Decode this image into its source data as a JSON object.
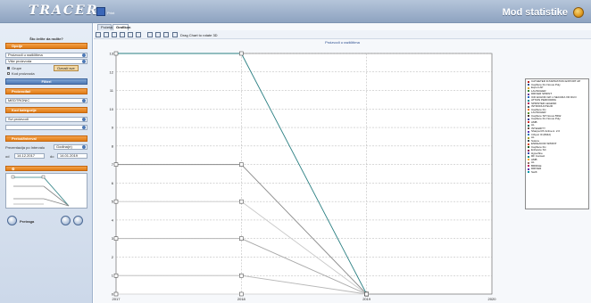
{
  "header": {
    "logo": "TRACER",
    "sub": "Print",
    "title": "Mod statistike"
  },
  "sidebar": {
    "title": "Što želite da radite?",
    "sections": {
      "opcije": "Opcije",
      "filteri": "Filteri",
      "proizvodjac": "Proizvođač",
      "kategorija": "Kod kategorije",
      "period": "Period/Interval"
    },
    "opcije": {
      "select1": "Proizvodi u različitima",
      "select2": "Više proizvoda",
      "chk_grupe": "Grupe",
      "btn": "Označi sve",
      "chk_kod": "Kod proizvoda"
    },
    "filteri": {
      "proizvodjac_value": "MEDTRONIC",
      "kategorija_value": "Svi proizvodi"
    },
    "period": {
      "label": "Prezentacija po Intervalu",
      "interval_value": "Godina(e)",
      "od_label": "od",
      "od_value": "14.12.2017",
      "do_label": "do",
      "do_value": "14.01.2019"
    },
    "footer": {
      "pretraga": "Pretraga"
    }
  },
  "main": {
    "tabs": [
      "Početak",
      "Grafikon"
    ],
    "toolbar_hint": "Drag Chart to rotate 3D",
    "chart_subtitle": "Proizvodi u različitima"
  },
  "chart_data": {
    "type": "line",
    "x": [
      "2017",
      "2018",
      "2019",
      "2020"
    ],
    "ylim": [
      0,
      13
    ],
    "yticks": [
      0,
      1,
      2,
      3,
      4,
      5,
      6,
      7,
      8,
      9,
      10,
      11,
      12,
      13
    ],
    "grid": true,
    "series": [
      {
        "name": "CAPSURE FIX NOVUS (Medtronic)",
        "color": "#2a7f82",
        "values": [
          13,
          13,
          0,
          null
        ]
      },
      {
        "name": "Capsure Fix Novus Poly",
        "color": "#8a8a8a",
        "values": [
          7,
          7,
          0,
          null
        ]
      },
      {
        "name": "Export AP",
        "color": "#a8a8a8",
        "values": [
          3,
          3,
          0,
          null
        ]
      },
      {
        "name": "LAUNCHER",
        "color": "#b8b8b8",
        "values": [
          1,
          1,
          0,
          null
        ]
      },
      {
        "name": "DRIVER SPRINT",
        "color": "#c8c8c8",
        "values": [
          5,
          5,
          0,
          null
        ]
      },
      {
        "name": "ICD ECHO",
        "color": "#d8d8d8",
        "values": [
          0,
          0,
          0,
          null
        ]
      }
    ],
    "legend": {
      "placement": "right",
      "items": [
        {
          "name": "CATHETER D'ASPIRATION EXPORT AP",
          "color": "#b22222"
        },
        {
          "name": "CapSure Fix Novus Poly",
          "color": "#1f4f8f"
        },
        {
          "name": "Export AP",
          "color": "#d2a21e"
        },
        {
          "name": "LAUNCHER",
          "color": "#2e7d32"
        },
        {
          "name": "DRIVER SPRINT",
          "color": "#6a3d9a"
        },
        {
          "name": "ICD ECHNIC EP-1 SECURA VR DUO",
          "color": "#1565c0"
        },
        {
          "name": "ATTAIN PERFORMA",
          "color": "#00838f"
        },
        {
          "name": "SPRINTER LEGEND",
          "color": "#ad1457"
        },
        {
          "name": "INTRODUCTEUR",
          "color": "#455a64"
        },
        {
          "name": "CapSure Fix",
          "color": "#ef6c00"
        },
        {
          "name": "LAUNCHER",
          "color": "#558b2f"
        },
        {
          "name": "CapSure SP Novus 5592",
          "color": "#4e342e"
        },
        {
          "name": "CapSure Fix Novus Poly",
          "color": "#283593"
        },
        {
          "name": "AMB",
          "color": "#c62828"
        },
        {
          "name": "AL",
          "color": "#00695c"
        },
        {
          "name": "INTEGRITY",
          "color": "#6d4c41"
        },
        {
          "name": "Sharpa RX Active A. 2.0",
          "color": "#5e35b1"
        },
        {
          "name": "InSync III (8042)",
          "color": "#0277bd"
        },
        {
          "name": "AL",
          "color": "#9e9d24"
        },
        {
          "name": "Sutura",
          "color": "#37474f"
        },
        {
          "name": "ENDEAVOR SPRINT",
          "color": "#d84315"
        },
        {
          "name": "CapSure Fix",
          "color": "#1b5e20"
        },
        {
          "name": "Enhance SC",
          "color": "#880e4f"
        },
        {
          "name": "Hyperfine",
          "color": "#3949ab"
        },
        {
          "name": "RF Contact",
          "color": "#00897b"
        },
        {
          "name": "AMB",
          "color": "#f9a825"
        },
        {
          "name": "AL",
          "color": "#8d6e63"
        },
        {
          "name": "BRIDGE",
          "color": "#c2185b"
        },
        {
          "name": "DRIVER",
          "color": "#512da8"
        },
        {
          "name": "Swift",
          "color": "#0097a7"
        }
      ]
    }
  }
}
